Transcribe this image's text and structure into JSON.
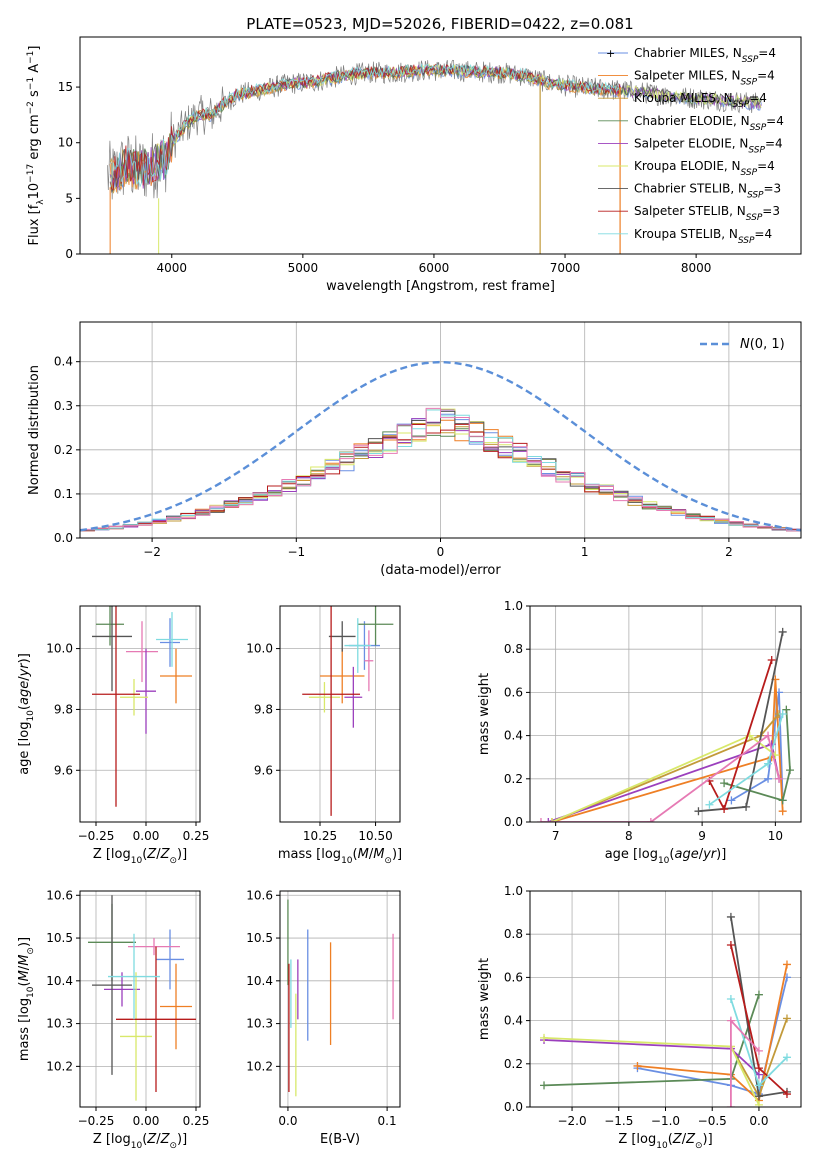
{
  "figure_title": "PLATE=0523, MJD=52026, FIBERID=0422, z=0.081",
  "colors": {
    "Chabrier MILES": "#6a8fe3",
    "Salpeter MILES": "#ee7f25",
    "Kroupa MILES": "#c29a3a",
    "Chabrier ELODIE": "#5b8a57",
    "Salpeter ELODIE": "#9b3fbd",
    "Kroupa ELODIE": "#d8e86a",
    "Chabrier STELIB": "#555555",
    "Salpeter STELIB": "#b71c1c",
    "Kroupa STELIB": "#7fdbe0",
    "Pink": "#e67ab4",
    "Gaussian": "#5b8fd8"
  },
  "chart_data": [
    {
      "id": "spectrum",
      "type": "line",
      "title": "PLATE=0523, MJD=52026, FIBERID=0422, z=0.081",
      "xlabel": "wavelength [Angstrom, rest frame]",
      "ylabel": "Flux [f_λ10^-17 erg cm^-2 s^-1 A^-1]",
      "xlim": [
        3300,
        8800
      ],
      "ylim": [
        0,
        19.5
      ],
      "xticks": [
        4000,
        5000,
        6000,
        7000,
        8000
      ],
      "yticks": [
        0,
        5,
        10,
        15
      ],
      "grid": false,
      "legend_position": "top-right",
      "legend": [
        {
          "label": "Chabrier MILES, N",
          "sub": "SSP",
          "suffix": "=4"
        },
        {
          "label": "Salpeter MILES, N",
          "sub": "SSP",
          "suffix": "=4"
        },
        {
          "label": "Kroupa MILES, N",
          "sub": "SSP",
          "suffix": "=4"
        },
        {
          "label": "Chabrier ELODIE, N",
          "sub": "SSP",
          "suffix": "=4"
        },
        {
          "label": "Salpeter ELODIE, N",
          "sub": "SSP",
          "suffix": "=4"
        },
        {
          "label": "Kroupa ELODIE, N",
          "sub": "SSP",
          "suffix": "=4"
        },
        {
          "label": "Chabrier STELIB, N",
          "sub": "SSP",
          "suffix": "=3"
        },
        {
          "label": "Salpeter STELIB, N",
          "sub": "SSP",
          "suffix": "=3"
        },
        {
          "label": "Kroupa STELIB, N",
          "sub": "SSP",
          "suffix": "=4"
        }
      ],
      "continuum_knots": [
        [
          3550,
          7
        ],
        [
          3650,
          8
        ],
        [
          3750,
          7.5
        ],
        [
          3850,
          8
        ],
        [
          3950,
          8.5
        ],
        [
          4000,
          10
        ],
        [
          4100,
          11.5
        ],
        [
          4200,
          12.5
        ],
        [
          4300,
          12.5
        ],
        [
          4400,
          13.5
        ],
        [
          4500,
          14.3
        ],
        [
          4700,
          14.8
        ],
        [
          4900,
          15.3
        ],
        [
          5100,
          15.5
        ],
        [
          5300,
          16
        ],
        [
          5500,
          16.3
        ],
        [
          5700,
          16.3
        ],
        [
          5900,
          16.5
        ],
        [
          6100,
          16.5
        ],
        [
          6300,
          16.4
        ],
        [
          6500,
          16.3
        ],
        [
          6700,
          16
        ],
        [
          6900,
          15.3
        ],
        [
          7100,
          15
        ],
        [
          7300,
          14.8
        ],
        [
          7450,
          14.7
        ],
        [
          7600,
          14.5
        ],
        [
          7800,
          14.2
        ],
        [
          8000,
          14
        ],
        [
          8200,
          13.8
        ],
        [
          8400,
          13.6
        ],
        [
          8500,
          13.5
        ]
      ]
    },
    {
      "id": "residuals",
      "type": "histogram",
      "xlabel": "(data-model)/error",
      "ylabel": "Normed distribution",
      "xlim": [
        -2.5,
        2.5
      ],
      "ylim": [
        0,
        0.49
      ],
      "xticks": [
        -2,
        -1,
        0,
        1,
        2
      ],
      "yticks": [
        0.0,
        0.1,
        0.2,
        0.3,
        0.4
      ],
      "grid": true,
      "legend_position": "top-right",
      "legend": [
        {
          "label": "N(0, 1)"
        }
      ],
      "bin_width": 0.1,
      "bins_from": -2.5,
      "reference_series": [
        0.018,
        0.021,
        0.024,
        0.028,
        0.033,
        0.038,
        0.044,
        0.05,
        0.058,
        0.066,
        0.075,
        0.085,
        0.096,
        0.108,
        0.12,
        0.133,
        0.146,
        0.16,
        0.175,
        0.19,
        0.205,
        0.22,
        0.235,
        0.25,
        0.265,
        0.28,
        0.294,
        0.308,
        0.321,
        0.333,
        0.345,
        0.355,
        0.364,
        0.372,
        0.379,
        0.385,
        0.39,
        0.394,
        0.396,
        0.398,
        0.399,
        0.398,
        0.396,
        0.394,
        0.39,
        0.385,
        0.379,
        0.372,
        0.364,
        0.355
      ]
    },
    {
      "id": "age-vs-Z",
      "type": "errorbar",
      "xlabel": "Z [log10(Z/Z⊙)]",
      "ylabel": "age [log10(age/yr)]",
      "xlim": [
        -0.33,
        0.27
      ],
      "ylim": [
        9.43,
        10.14
      ],
      "xticks": [
        -0.25,
        0.0,
        0.25
      ],
      "xtick_labels": [
        "−0.25",
        "0.00",
        "0.25"
      ],
      "yticks": [
        9.6,
        9.8,
        10.0
      ],
      "grid": true,
      "points": [
        {
          "series": "Chabrier MILES",
          "x": 0.12,
          "xerr": 0.05,
          "y": 10.02,
          "yerr": 0.08
        },
        {
          "series": "Salpeter MILES",
          "x": 0.15,
          "xerr": 0.08,
          "y": 9.91,
          "yerr": 0.09
        },
        {
          "series": "Pink",
          "x": -0.02,
          "xerr": 0.08,
          "y": 9.99,
          "yerr": 0.1
        },
        {
          "series": "Chabrier ELODIE",
          "x": -0.18,
          "xerr": 0.07,
          "y": 10.08,
          "yerr": 0.07
        },
        {
          "series": "Salpeter ELODIE",
          "x": 0.0,
          "xerr": 0.05,
          "y": 9.86,
          "yerr": 0.14
        },
        {
          "series": "Kroupa ELODIE",
          "x": -0.06,
          "xerr": 0.07,
          "y": 9.84,
          "yerr": 0.06
        },
        {
          "series": "Chabrier STELIB",
          "x": -0.17,
          "xerr": 0.1,
          "y": 10.04,
          "yerr": 0.18
        },
        {
          "series": "Salpeter STELIB",
          "x": -0.15,
          "xerr": 0.12,
          "y": 9.85,
          "yerr": 0.37
        },
        {
          "series": "Kroupa STELIB",
          "x": 0.13,
          "xerr": 0.08,
          "y": 10.03,
          "yerr": 0.09
        }
      ]
    },
    {
      "id": "age-vs-mass",
      "type": "errorbar",
      "xlabel": "mass [log10(M/M⊙)]",
      "xlim": [
        10.07,
        10.61
      ],
      "ylim": [
        9.43,
        10.14
      ],
      "xticks": [
        10.25,
        10.5
      ],
      "xtick_labels": [
        "10.25",
        "10.50"
      ],
      "yticks": [
        9.6,
        9.8,
        10.0
      ],
      "grid": true,
      "points": [
        {
          "series": "Chabrier MILES",
          "x": 10.45,
          "xerr": 0.07,
          "y": 10.01,
          "yerr": 0.08
        },
        {
          "series": "Salpeter MILES",
          "x": 10.35,
          "xerr": 0.1,
          "y": 9.91,
          "yerr": 0.09
        },
        {
          "series": "Pink",
          "x": 10.47,
          "xerr": 0.02,
          "y": 9.96,
          "yerr": 0.1
        },
        {
          "series": "Chabrier ELODIE",
          "x": 10.5,
          "xerr": 0.08,
          "y": 10.08,
          "yerr": 0.07
        },
        {
          "series": "Salpeter ELODIE",
          "x": 10.4,
          "xerr": 0.04,
          "y": 9.84,
          "yerr": 0.1
        },
        {
          "series": "Kroupa ELODIE",
          "x": 10.27,
          "xerr": 0.07,
          "y": 9.84,
          "yerr": 0.05
        },
        {
          "series": "Chabrier STELIB",
          "x": 10.35,
          "xerr": 0.06,
          "y": 10.04,
          "yerr": 0.05
        },
        {
          "series": "Salpeter STELIB",
          "x": 10.3,
          "xerr": 0.13,
          "y": 9.85,
          "yerr": 0.4
        },
        {
          "series": "Kroupa STELIB",
          "x": 10.42,
          "xerr": 0.06,
          "y": 10.01,
          "yerr": 0.09
        }
      ]
    },
    {
      "id": "massweight-vs-age",
      "type": "line",
      "xlabel": "age [log10(age/yr)]",
      "ylabel": "mass weight",
      "xlim": [
        6.65,
        10.35
      ],
      "ylim": [
        0,
        1.0
      ],
      "xticks": [
        7,
        8,
        9,
        10
      ],
      "yticks": [
        0.0,
        0.2,
        0.4,
        0.6,
        0.8,
        1.0
      ],
      "grid": true,
      "series": [
        {
          "name": "Chabrier MILES",
          "points": [
            [
              9.4,
              0.1
            ],
            [
              9.9,
              0.2
            ],
            [
              10.05,
              0.6
            ],
            [
              10.1,
              0.1
            ]
          ]
        },
        {
          "name": "Salpeter MILES",
          "points": [
            [
              6.95,
              0
            ],
            [
              9.95,
              0.3
            ],
            [
              10.0,
              0.66
            ],
            [
              10.1,
              0.05
            ]
          ]
        },
        {
          "name": "Kroupa MILES",
          "points": [
            [
              6.95,
              0
            ],
            [
              9.8,
              0.4
            ],
            [
              10.05,
              0.5
            ]
          ]
        },
        {
          "name": "Chabrier ELODIE",
          "points": [
            [
              9.3,
              0.18
            ],
            [
              10.1,
              0.1
            ],
            [
              10.2,
              0.24
            ],
            [
              10.15,
              0.52
            ]
          ]
        },
        {
          "name": "Salpeter ELODIE",
          "points": [
            [
              6.9,
              0
            ],
            [
              9.95,
              0.36
            ],
            [
              10.05,
              0.2
            ]
          ]
        },
        {
          "name": "Kroupa ELODIE",
          "points": [
            [
              6.95,
              0
            ],
            [
              9.65,
              0.4
            ],
            [
              10.0,
              0.31
            ]
          ]
        },
        {
          "name": "Chabrier STELIB",
          "points": [
            [
              8.95,
              0.05
            ],
            [
              9.6,
              0.07
            ],
            [
              10.1,
              0.88
            ]
          ]
        },
        {
          "name": "Salpeter STELIB",
          "points": [
            [
              9.1,
              0.19
            ],
            [
              9.3,
              0.06
            ],
            [
              9.95,
              0.75
            ]
          ]
        },
        {
          "name": "Kroupa STELIB",
          "points": [
            [
              9.1,
              0.08
            ],
            [
              9.9,
              0.27
            ],
            [
              10.1,
              0.5
            ]
          ]
        },
        {
          "name": "Pink",
          "points": [
            [
              6.8,
              0
            ],
            [
              8.3,
              0
            ],
            [
              9.9,
              0.4
            ],
            [
              10.05,
              0.2
            ]
          ]
        }
      ]
    },
    {
      "id": "mass-vs-Z",
      "type": "errorbar",
      "xlabel": "Z [log10(Z/Z⊙)]",
      "ylabel": "mass [log10(M/M⊙)]",
      "xlim": [
        -0.33,
        0.27
      ],
      "ylim": [
        10.105,
        10.61
      ],
      "xticks": [
        -0.25,
        0.0,
        0.25
      ],
      "xtick_labels": [
        "−0.25",
        "0.00",
        "0.25"
      ],
      "yticks": [
        10.2,
        10.3,
        10.4,
        10.5,
        10.6
      ],
      "grid": true,
      "points": [
        {
          "series": "Chabrier MILES",
          "x": 0.12,
          "xerr": 0.07,
          "y": 10.45,
          "yerr": 0.07
        },
        {
          "series": "Salpeter MILES",
          "x": 0.15,
          "xerr": 0.08,
          "y": 10.34,
          "yerr": 0.1
        },
        {
          "series": "Pink",
          "x": 0.04,
          "xerr": 0.13,
          "y": 10.48,
          "yerr": 0.02
        },
        {
          "series": "Chabrier ELODIE",
          "x": -0.17,
          "xerr": 0.12,
          "y": 10.49,
          "yerr": 0.09
        },
        {
          "series": "Salpeter ELODIE",
          "x": -0.12,
          "xerr": 0.09,
          "y": 10.38,
          "yerr": 0.04
        },
        {
          "series": "Kroupa ELODIE",
          "x": -0.05,
          "xerr": 0.08,
          "y": 10.27,
          "yerr": 0.15
        },
        {
          "series": "Chabrier STELIB",
          "x": -0.17,
          "xerr": 0.1,
          "y": 10.39,
          "yerr": 0.21
        },
        {
          "series": "Salpeter STELIB",
          "x": 0.05,
          "xerr": 0.2,
          "y": 10.31,
          "yerr": 0.17
        },
        {
          "series": "Kroupa STELIB",
          "x": -0.06,
          "xerr": 0.13,
          "y": 10.41,
          "yerr": 0.1
        }
      ]
    },
    {
      "id": "mass-vs-EBV",
      "type": "errorbar",
      "xlabel": "E(B-V)",
      "xlim": [
        -0.008,
        0.113
      ],
      "ylim": [
        10.105,
        10.61
      ],
      "xticks": [
        0.0,
        0.1
      ],
      "xtick_labels": [
        "0.0",
        "0.1"
      ],
      "yticks": [
        10.2,
        10.3,
        10.4,
        10.5,
        10.6
      ],
      "grid": true,
      "points": [
        {
          "series": "Chabrier MILES",
          "x": 0.02,
          "y": 10.39,
          "yerr": 0.13
        },
        {
          "series": "Salpeter MILES",
          "x": 0.043,
          "y": 10.37,
          "yerr": 0.12
        },
        {
          "series": "Pink",
          "x": 0.106,
          "y": 10.41,
          "yerr": 0.1
        },
        {
          "series": "Chabrier ELODIE",
          "x": 0.0,
          "y": 10.49,
          "yerr": 0.1
        },
        {
          "series": "Salpeter ELODIE",
          "x": 0.01,
          "y": 10.38,
          "yerr": 0.07
        },
        {
          "series": "Kroupa ELODIE",
          "x": 0.008,
          "y": 10.25,
          "yerr": 0.12
        },
        {
          "series": "Salpeter STELIB",
          "x": 0.001,
          "y": 10.29,
          "yerr": 0.15
        },
        {
          "series": "Kroupa STELIB",
          "x": 0.003,
          "y": 10.37,
          "yerr": 0.08
        }
      ]
    },
    {
      "id": "massweight-vs-Z",
      "type": "line",
      "xlabel": "Z [log10(Z/Z⊙)]",
      "ylabel": "mass weight",
      "xlim": [
        -2.45,
        0.45
      ],
      "ylim": [
        0,
        1.0
      ],
      "xticks": [
        -2.0,
        -1.5,
        -1.0,
        -0.5,
        0.0
      ],
      "xtick_labels": [
        "−2.0",
        "−1.5",
        "−1.0",
        "−0.5",
        "0.0"
      ],
      "yticks": [
        0.0,
        0.2,
        0.4,
        0.6,
        0.8,
        1.0
      ],
      "grid": true,
      "series": [
        {
          "name": "Chabrier MILES",
          "points": [
            [
              -1.3,
              0.18
            ],
            [
              -0.3,
              0.1
            ],
            [
              0.0,
              0.06
            ],
            [
              0.3,
              0.6
            ]
          ]
        },
        {
          "name": "Salpeter MILES",
          "points": [
            [
              -1.3,
              0.19
            ],
            [
              -0.3,
              0.15
            ],
            [
              0.0,
              0.03
            ],
            [
              0.3,
              0.66
            ]
          ]
        },
        {
          "name": "Kroupa MILES",
          "points": [
            [
              -0.3,
              0.28
            ],
            [
              0.0,
              0.05
            ],
            [
              0.3,
              0.41
            ]
          ]
        },
        {
          "name": "Chabrier ELODIE",
          "points": [
            [
              -2.3,
              0.1
            ],
            [
              -0.3,
              0.13
            ],
            [
              0.0,
              0.52
            ]
          ]
        },
        {
          "name": "Salpeter ELODIE",
          "points": [
            [
              -2.3,
              0.31
            ],
            [
              -0.3,
              0.27
            ],
            [
              0.0,
              0.15
            ]
          ]
        },
        {
          "name": "Kroupa ELODIE",
          "points": [
            [
              -2.3,
              0.32
            ],
            [
              -0.3,
              0.28
            ],
            [
              0.0,
              0.01
            ]
          ]
        },
        {
          "name": "Chabrier STELIB",
          "points": [
            [
              -0.3,
              0.88
            ],
            [
              0.0,
              0.05
            ],
            [
              0.3,
              0.07
            ]
          ]
        },
        {
          "name": "Salpeter STELIB",
          "points": [
            [
              -0.3,
              0.75
            ],
            [
              0.0,
              0.18
            ],
            [
              0.3,
              0.06
            ]
          ]
        },
        {
          "name": "Kroupa STELIB",
          "points": [
            [
              -0.3,
              0.5
            ],
            [
              0.0,
              0.1
            ],
            [
              0.3,
              0.23
            ]
          ]
        },
        {
          "name": "Pink",
          "points": [
            [
              -0.3,
              0.0
            ],
            [
              -0.3,
              0.4
            ],
            [
              0.0,
              0.26
            ]
          ]
        }
      ]
    }
  ]
}
